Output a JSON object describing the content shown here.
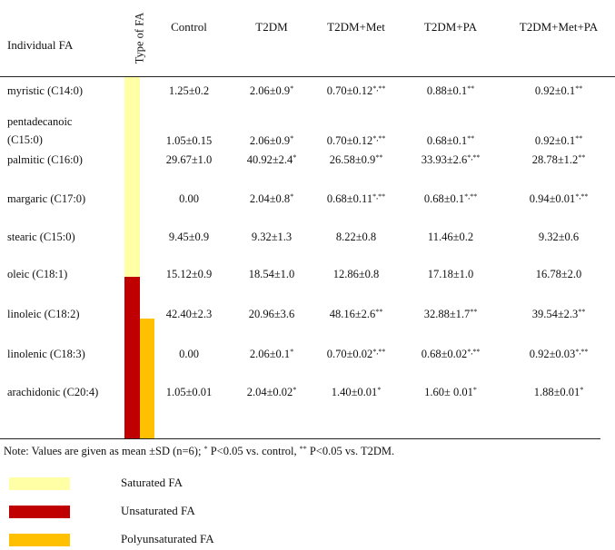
{
  "table": {
    "header": {
      "individual_fa": "Individual FA",
      "type_of_fa": "Type of FA",
      "columns": [
        "Control",
        "T2DM",
        "T2DM+Met",
        "T2DM+PA",
        "T2DM+Met+PA"
      ]
    },
    "rows": [
      {
        "name": "myristic (C14:0)",
        "name2": "",
        "type": "Saturated",
        "values": [
          [
            "1.25±0.2",
            ""
          ],
          [
            "2.06±0.9",
            "*"
          ],
          [
            "0.70±0.12",
            "*,**"
          ],
          [
            "0.88±0.1",
            "**"
          ],
          [
            "0.92±0.1",
            "**"
          ]
        ]
      },
      {
        "name": "pentadecanoic",
        "name2": "(C15:0)",
        "type": "Saturated",
        "values": [
          [
            "1.05±0.15",
            ""
          ],
          [
            "2.06±0.9",
            "*"
          ],
          [
            "0.70±0.12",
            "*,**"
          ],
          [
            "0.68±0.1",
            "**"
          ],
          [
            "0.92±0.1",
            "**"
          ]
        ]
      },
      {
        "name": "palmitic (C16:0)",
        "name2": "",
        "type": "Saturated",
        "values": [
          [
            "29.67±1.0",
            ""
          ],
          [
            "40.92±2.4",
            "*"
          ],
          [
            "26.58±0.9",
            "**"
          ],
          [
            "33.93±2.6",
            "*,**"
          ],
          [
            "28.78±1.2",
            "**"
          ]
        ]
      },
      {
        "name": "margaric  (C17:0)",
        "name2": "",
        "type": "Saturated",
        "values": [
          [
            "0.00",
            ""
          ],
          [
            "2.04±0.8",
            "*"
          ],
          [
            "0.68±0.11",
            "*,**"
          ],
          [
            "0.68±0.1",
            "*,**"
          ],
          [
            "0.94±0.01",
            "*,**"
          ]
        ]
      },
      {
        "name": "stearic (C15:0)",
        "name2": "",
        "type": "Saturated",
        "values": [
          [
            "9.45±0.9",
            ""
          ],
          [
            "9.32±1.3",
            ""
          ],
          [
            "8.22±0.8",
            ""
          ],
          [
            "11.46±0.2",
            ""
          ],
          [
            "9.32±0.6",
            ""
          ]
        ]
      },
      {
        "name": "oleic (C18:1)",
        "name2": "",
        "type": "Unsaturated",
        "values": [
          [
            "15.12±0.9",
            ""
          ],
          [
            "18.54±1.0",
            ""
          ],
          [
            "12.86±0.8",
            ""
          ],
          [
            "17.18±1.0",
            ""
          ],
          [
            "16.78±2.0",
            ""
          ]
        ]
      },
      {
        "name": "linoleic (C18:2)",
        "name2": "",
        "type": "Polyunsaturated",
        "values": [
          [
            "42.40±2.3",
            ""
          ],
          [
            "20.96±3.6",
            ""
          ],
          [
            "48.16±2.6",
            "**"
          ],
          [
            "32.88±1.7",
            "**"
          ],
          [
            "39.54±2.3",
            "**"
          ]
        ]
      },
      {
        "name": "linolenic (C18:3)",
        "name2": "",
        "type": "Polyunsaturated",
        "values": [
          [
            "0.00",
            ""
          ],
          [
            "2.06±0.1",
            "*"
          ],
          [
            "0.70±0.02",
            "*,**"
          ],
          [
            "0.68±0.02",
            "*,**"
          ],
          [
            "0.92±0.03",
            "*,**"
          ]
        ]
      },
      {
        "name": "arachidonic  (C20:4)",
        "name2": "",
        "type": "Polyunsaturated",
        "values": [
          [
            "1.05±0.01",
            ""
          ],
          [
            "2.04±0.02",
            "*"
          ],
          [
            "1.40±0.01",
            "*"
          ],
          [
            "1.60± 0.01",
            "*"
          ],
          [
            "1.88±0.01",
            "*"
          ]
        ]
      }
    ]
  },
  "note": {
    "prefix": "Note: Values are given as mean ±SD (n=6); ",
    "sup1": "*",
    "mid": " P<0.05 vs. control, ",
    "sup2": "**",
    "suffix": " P<0.05 vs. T2DM."
  },
  "legend": [
    {
      "label": "Saturated FA",
      "color": "#FFFFA6"
    },
    {
      "label": "Unsaturated FA",
      "color": "#C00000"
    },
    {
      "label": "Polyunsaturated FA",
      "color": "#FFC000"
    }
  ]
}
